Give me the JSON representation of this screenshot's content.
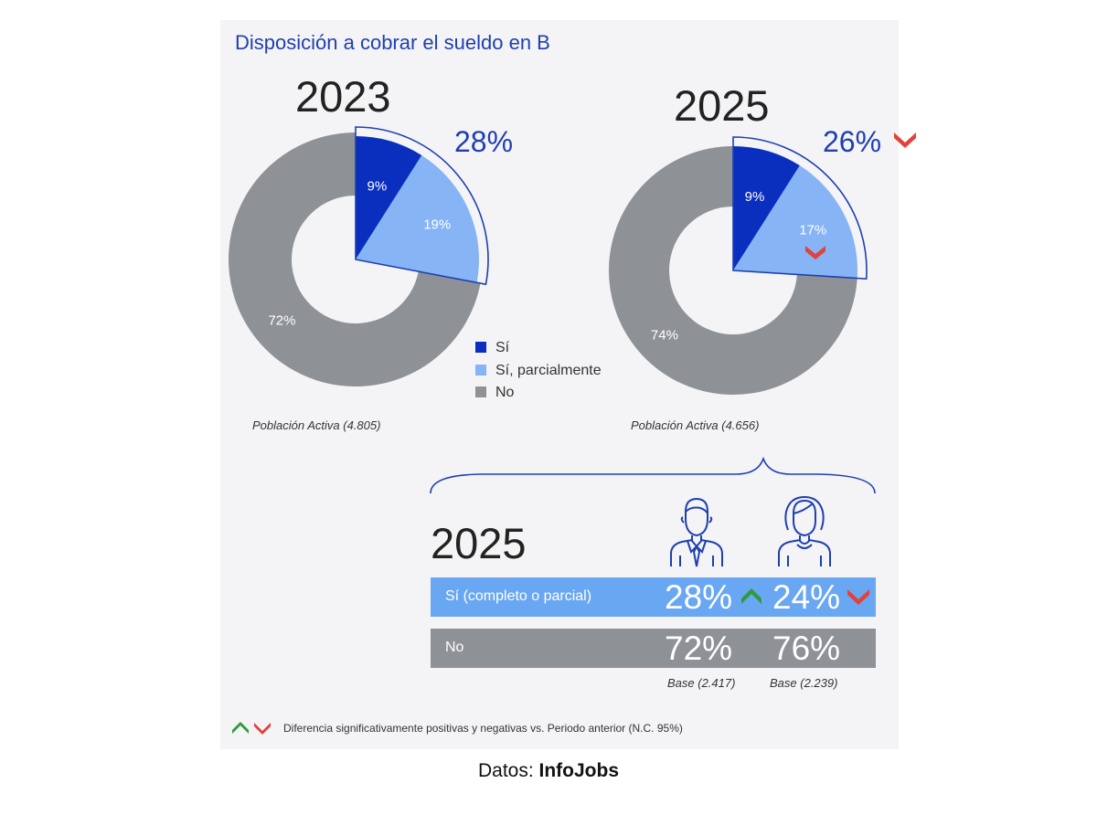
{
  "title": "Disposición a cobrar el sueldo en B",
  "colors": {
    "si": "#0a2fbf",
    "si_parcial": "#86b4f5",
    "no": "#8e9297",
    "accent_text": "#1f3fb0",
    "up": "#2e9a3e",
    "down": "#e2423a"
  },
  "legend": [
    {
      "label": "Sí",
      "color": "#0a2fbf"
    },
    {
      "label": "Sí, parcialmente",
      "color": "#86b4f5"
    },
    {
      "label": "No",
      "color": "#8e9297"
    }
  ],
  "chart_data": [
    {
      "type": "pie",
      "title": "2023",
      "categories": [
        "Sí",
        "Sí, parcialmente",
        "No"
      ],
      "values": [
        9,
        19,
        72
      ],
      "labels": [
        "9%",
        "19%",
        "72%"
      ],
      "total_si_label": "28%",
      "base": "Población Activa (4.805)"
    },
    {
      "type": "pie",
      "title": "2025",
      "categories": [
        "Sí",
        "Sí, parcialmente",
        "No"
      ],
      "values": [
        9,
        17,
        74
      ],
      "labels": [
        "9%",
        "17%",
        "74%"
      ],
      "total_si_label": "26%",
      "base": "Población Activa (4.656)"
    },
    {
      "type": "table",
      "title": "2025",
      "columns": [
        "hombre-icon",
        "mujer-icon"
      ],
      "rows": [
        {
          "label": "Sí (completo o parcial)",
          "values": [
            "28%",
            "24%"
          ]
        },
        {
          "label": "No",
          "values": [
            "72%",
            "76%"
          ]
        }
      ],
      "bases": [
        "Base (2.417)",
        "Base (2.239)"
      ]
    }
  ],
  "note": "Diferencia significativamente positivas y negativas vs. Periodo anterior (N.C. 95%)",
  "source_prefix": "Datos: ",
  "source_name": "InfoJobs"
}
